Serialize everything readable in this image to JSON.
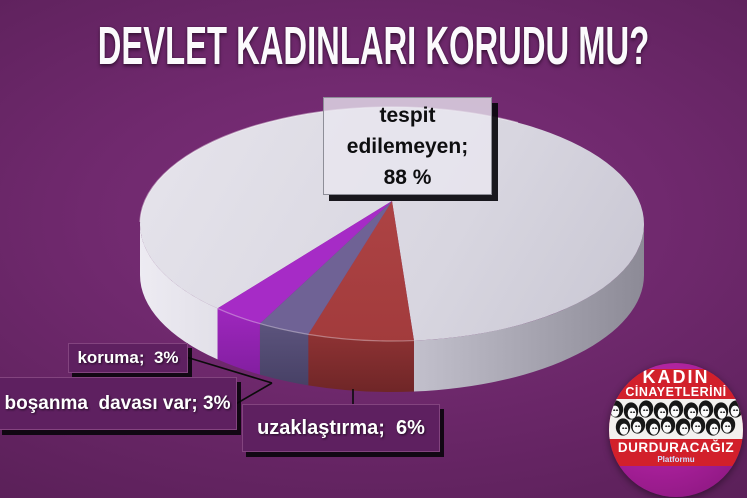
{
  "title": "DEVLET KADINLARI KORUDU MU?",
  "chart_data": {
    "type": "pie",
    "style": "3d",
    "title": "DEVLET KADINLARI KORUDU MU?",
    "unit": "%",
    "slices": [
      {
        "label": "tespit edilemeyen",
        "value": 88,
        "display": "tespit edilemeyen; 88 %",
        "color": "#d8d6e0",
        "side_color": "#b4b2bf"
      },
      {
        "label": "uzaklaştırma",
        "value": 6,
        "display": "uzaklaştırma;  6%",
        "color": "#a23b3c",
        "side_color": "#7a2a2b"
      },
      {
        "label": "boşanma davası var",
        "value": 3,
        "display": "boşanma  davası var; 3%",
        "color": "#6f6295",
        "side_color": "#4f4871"
      },
      {
        "label": "koruma",
        "value": 3,
        "display": "koruma;  3%",
        "color": "#a62bc6",
        "side_color": "#841fa2"
      }
    ],
    "legend_position": "none",
    "labels_shown_as": "callout-boxes-with-leader-lines"
  },
  "callouts": {
    "tespit": {
      "line1": "tespit",
      "line2": "edilemeyen;",
      "line3": "88 %"
    },
    "koruma": {
      "text": "koruma;  3%"
    },
    "bosanma": {
      "text": "boşanma  davası var; 3%"
    },
    "uzaklastirma": {
      "text": "uzaklaştırma;  6%"
    }
  },
  "logo": {
    "line1": "KADIN",
    "line2": "CİNAYETLERİNİ",
    "line3": "DURDURACAĞIZ",
    "line4": "Platformu",
    "circle_color": "#a41e96",
    "band_color": "#d2202b",
    "faces_strip": "black-and-white sketched women faces"
  },
  "colors": {
    "background_center": "#7e2f7c",
    "background_edge": "#4e1c4d",
    "title_color": "#fbfafc",
    "leader_line": "#0b0b0b"
  }
}
